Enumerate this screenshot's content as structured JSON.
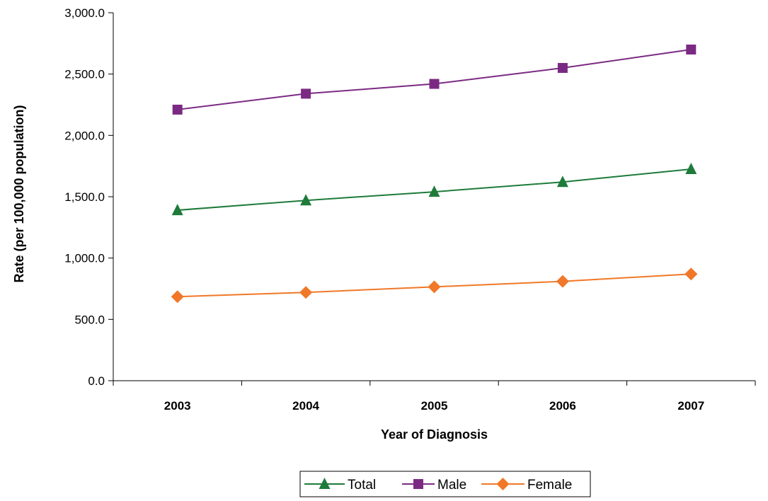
{
  "chart_data": {
    "type": "line",
    "title": "",
    "xlabel": "Year of Diagnosis",
    "ylabel": "Rate (per 100,000 population)",
    "categories": [
      "2003",
      "2004",
      "2005",
      "2006",
      "2007"
    ],
    "ylim": [
      0,
      3000
    ],
    "yticks": [
      0,
      500,
      1000,
      1500,
      2000,
      2500,
      3000
    ],
    "ytick_labels": [
      "0.0",
      "500.0",
      "1,000.0",
      "1,500.0",
      "2,000.0",
      "2,500.0",
      "3,000.0"
    ],
    "grid": false,
    "legend_position": "bottom-center",
    "series": [
      {
        "name": "Total",
        "values": [
          1390,
          1470,
          1540,
          1620,
          1725
        ],
        "color": "#1e7b3a",
        "marker": "triangle"
      },
      {
        "name": "Male",
        "values": [
          2210,
          2340,
          2420,
          2550,
          2700
        ],
        "color": "#7b2a83",
        "marker": "square"
      },
      {
        "name": "Female",
        "values": [
          685,
          720,
          765,
          810,
          870
        ],
        "color": "#f07828",
        "marker": "diamond"
      }
    ]
  }
}
